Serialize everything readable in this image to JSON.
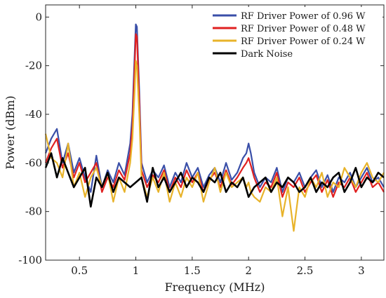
{
  "chart_data": {
    "type": "line",
    "xlabel": "Frequency (MHz)",
    "ylabel": "Power (dBm)",
    "xlim": [
      0.2,
      3.2
    ],
    "ylim": [
      -100,
      5
    ],
    "xticks": [
      0.5,
      1,
      1.5,
      2,
      2.5,
      3
    ],
    "xtick_labels": [
      "0.5",
      "1",
      "1.5",
      "2",
      "2.5",
      "3"
    ],
    "yticks": [
      0,
      -20,
      -40,
      -60,
      -80,
      -100
    ],
    "ytick_labels": [
      "0",
      "-20",
      "-40",
      "-60",
      "-80",
      "-100"
    ],
    "grid": false,
    "legend_position": "top-right",
    "series": [
      {
        "name": "RF Driver Power of 0.96 W",
        "color": "#3a4fa8",
        "x": [
          0.2,
          0.25,
          0.3,
          0.35,
          0.4,
          0.45,
          0.5,
          0.55,
          0.6,
          0.65,
          0.7,
          0.75,
          0.8,
          0.85,
          0.9,
          0.95,
          0.97,
          0.99,
          1.0,
          1.01,
          1.03,
          1.05,
          1.1,
          1.15,
          1.2,
          1.25,
          1.3,
          1.35,
          1.4,
          1.45,
          1.5,
          1.55,
          1.6,
          1.65,
          1.7,
          1.75,
          1.8,
          1.85,
          1.9,
          1.95,
          1.98,
          2.0,
          2.02,
          2.05,
          2.1,
          2.15,
          2.2,
          2.25,
          2.3,
          2.35,
          2.4,
          2.45,
          2.5,
          2.55,
          2.6,
          2.65,
          2.7,
          2.75,
          2.8,
          2.85,
          2.9,
          2.95,
          3.0,
          3.05,
          3.1,
          3.15,
          3.2
        ],
        "y": [
          -56,
          -50,
          -46,
          -60,
          -52,
          -64,
          -58,
          -66,
          -72,
          -57,
          -70,
          -63,
          -68,
          -60,
          -65,
          -52,
          -40,
          -15,
          -3,
          -4,
          -30,
          -60,
          -68,
          -63,
          -66,
          -61,
          -70,
          -64,
          -68,
          -60,
          -66,
          -62,
          -70,
          -65,
          -62,
          -68,
          -60,
          -67,
          -64,
          -58,
          -56,
          -52,
          -56,
          -64,
          -70,
          -66,
          -68,
          -62,
          -72,
          -66,
          -68,
          -64,
          -70,
          -66,
          -63,
          -70,
          -65,
          -72,
          -66,
          -68,
          -64,
          -70,
          -66,
          -62,
          -68,
          -66,
          -70
        ]
      },
      {
        "name": "RF Driver Power of 0.48 W",
        "color": "#e02020",
        "x": [
          0.2,
          0.25,
          0.3,
          0.35,
          0.4,
          0.45,
          0.5,
          0.55,
          0.6,
          0.65,
          0.7,
          0.75,
          0.8,
          0.85,
          0.9,
          0.95,
          0.97,
          0.99,
          1.0,
          1.01,
          1.03,
          1.05,
          1.1,
          1.15,
          1.2,
          1.25,
          1.3,
          1.35,
          1.4,
          1.45,
          1.5,
          1.55,
          1.6,
          1.65,
          1.7,
          1.75,
          1.8,
          1.85,
          1.9,
          1.95,
          1.98,
          2.0,
          2.02,
          2.05,
          2.1,
          2.15,
          2.2,
          2.25,
          2.3,
          2.35,
          2.4,
          2.45,
          2.5,
          2.55,
          2.6,
          2.65,
          2.7,
          2.75,
          2.8,
          2.85,
          2.9,
          2.95,
          3.0,
          3.05,
          3.1,
          3.15,
          3.2
        ],
        "y": [
          -60,
          -54,
          -50,
          -62,
          -56,
          -66,
          -60,
          -68,
          -64,
          -60,
          -72,
          -66,
          -70,
          -63,
          -67,
          -56,
          -45,
          -20,
          -7,
          -8,
          -34,
          -63,
          -70,
          -65,
          -68,
          -63,
          -72,
          -66,
          -70,
          -63,
          -68,
          -64,
          -72,
          -67,
          -64,
          -70,
          -63,
          -69,
          -66,
          -62,
          -60,
          -58,
          -61,
          -66,
          -72,
          -68,
          -70,
          -64,
          -74,
          -68,
          -70,
          -66,
          -72,
          -68,
          -65,
          -72,
          -67,
          -74,
          -68,
          -70,
          -66,
          -72,
          -68,
          -64,
          -70,
          -68,
          -72
        ]
      },
      {
        "name": "RF Driver Power of 0.24 W",
        "color": "#e8b32a",
        "x": [
          0.2,
          0.25,
          0.3,
          0.35,
          0.4,
          0.45,
          0.5,
          0.55,
          0.6,
          0.65,
          0.7,
          0.75,
          0.8,
          0.85,
          0.9,
          0.95,
          0.97,
          0.99,
          1.0,
          1.01,
          1.03,
          1.05,
          1.1,
          1.15,
          1.2,
          1.25,
          1.3,
          1.35,
          1.4,
          1.45,
          1.5,
          1.55,
          1.6,
          1.65,
          1.7,
          1.75,
          1.8,
          1.85,
          1.9,
          1.95,
          1.98,
          2.0,
          2.02,
          2.05,
          2.1,
          2.15,
          2.2,
          2.25,
          2.3,
          2.35,
          2.4,
          2.45,
          2.5,
          2.55,
          2.6,
          2.65,
          2.7,
          2.75,
          2.8,
          2.85,
          2.9,
          2.95,
          3.0,
          3.05,
          3.1,
          3.15,
          3.2
        ],
        "y": [
          -48,
          -58,
          -60,
          -66,
          -52,
          -70,
          -64,
          -74,
          -66,
          -62,
          -70,
          -64,
          -76,
          -66,
          -72,
          -60,
          -50,
          -30,
          -18,
          -20,
          -40,
          -66,
          -74,
          -66,
          -72,
          -64,
          -76,
          -68,
          -74,
          -66,
          -70,
          -64,
          -76,
          -68,
          -62,
          -72,
          -64,
          -70,
          -68,
          -66,
          -70,
          -68,
          -72,
          -74,
          -76,
          -70,
          -72,
          -66,
          -82,
          -70,
          -88,
          -70,
          -74,
          -66,
          -70,
          -64,
          -74,
          -68,
          -70,
          -62,
          -66,
          -70,
          -64,
          -60,
          -66,
          -68,
          -64
        ]
      },
      {
        "name": "Dark Noise",
        "color": "#000000",
        "x": [
          0.2,
          0.25,
          0.3,
          0.35,
          0.4,
          0.45,
          0.5,
          0.55,
          0.6,
          0.65,
          0.7,
          0.75,
          0.8,
          0.85,
          0.9,
          0.95,
          1.0,
          1.05,
          1.1,
          1.15,
          1.2,
          1.25,
          1.3,
          1.35,
          1.4,
          1.45,
          1.5,
          1.55,
          1.6,
          1.65,
          1.7,
          1.75,
          1.8,
          1.85,
          1.9,
          1.95,
          2.0,
          2.05,
          2.1,
          2.15,
          2.2,
          2.25,
          2.3,
          2.35,
          2.4,
          2.45,
          2.5,
          2.55,
          2.6,
          2.65,
          2.7,
          2.75,
          2.8,
          2.85,
          2.9,
          2.95,
          3.0,
          3.05,
          3.1,
          3.15,
          3.2
        ],
        "y": [
          -62,
          -56,
          -66,
          -58,
          -64,
          -70,
          -66,
          -62,
          -78,
          -66,
          -70,
          -64,
          -72,
          -66,
          -68,
          -70,
          -68,
          -66,
          -76,
          -62,
          -70,
          -66,
          -72,
          -68,
          -64,
          -70,
          -66,
          -68,
          -72,
          -66,
          -68,
          -64,
          -72,
          -68,
          -70,
          -66,
          -74,
          -70,
          -68,
          -66,
          -72,
          -68,
          -70,
          -66,
          -68,
          -72,
          -70,
          -66,
          -72,
          -68,
          -70,
          -66,
          -64,
          -72,
          -68,
          -62,
          -70,
          -66,
          -68,
          -64,
          -66
        ]
      }
    ]
  }
}
